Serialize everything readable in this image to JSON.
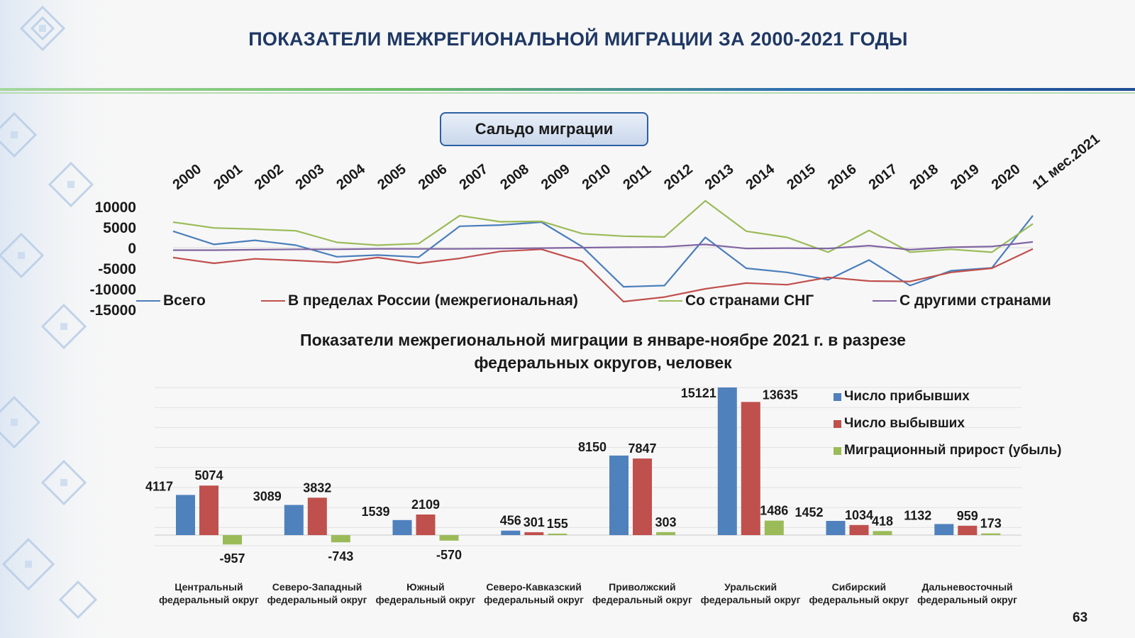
{
  "slide": {
    "title": "ПОКАЗАТЕЛИ МЕЖРЕГИОНАЛЬНОЙ МИГРАЦИИ ЗА 2000-2021 ГОДЫ",
    "page_number": "63",
    "colors": {
      "title": "#1f3864",
      "rule_blue": "#1f4e96",
      "rule_green": "#6fbf6a"
    }
  },
  "chart_data": [
    {
      "type": "line",
      "title": "Сальдо миграции",
      "categories": [
        "2000",
        "2001",
        "2002",
        "2003",
        "2004",
        "2005",
        "2006",
        "2007",
        "2008",
        "2009",
        "2010",
        "2011",
        "2012",
        "2013",
        "2014",
        "2015",
        "2016",
        "2017",
        "2018",
        "2019",
        "2020",
        "11 мес.2021"
      ],
      "y_ticks": [
        "10000",
        "5000",
        "0",
        "-5000",
        "-10000",
        "-15000"
      ],
      "ylim": [
        -15000,
        10000
      ],
      "series": [
        {
          "name": "Всего",
          "color": "#4a7ebb",
          "values": [
            4000,
            800,
            1800,
            600,
            -2200,
            -1800,
            -2300,
            5200,
            5500,
            6200,
            200,
            -9500,
            -9200,
            2500,
            -5000,
            -6000,
            -7800,
            -3000,
            -9200,
            -5600,
            -4900,
            7800
          ]
        },
        {
          "name": "В пределах России (межрегиональная)",
          "color": "#c0504d",
          "values": [
            -2400,
            -3800,
            -2700,
            -3100,
            -3600,
            -2400,
            -3800,
            -2600,
            -900,
            -400,
            -3400,
            -13100,
            -12000,
            -10000,
            -8600,
            -9000,
            -7200,
            -8100,
            -8200,
            -6000,
            -5000,
            -300
          ]
        },
        {
          "name": "Со странами СНГ",
          "color": "#9bbb59",
          "values": [
            6200,
            4800,
            4500,
            4100,
            1300,
            600,
            1000,
            7800,
            6300,
            6400,
            3400,
            2800,
            2600,
            11400,
            4000,
            2500,
            -1100,
            4200,
            -1100,
            -400,
            -1100,
            5800
          ]
        },
        {
          "name": "С другими странами",
          "color": "#8064a2",
          "values": [
            -600,
            -600,
            -500,
            -400,
            -400,
            -300,
            -300,
            -300,
            -200,
            -100,
            0,
            100,
            200,
            800,
            -200,
            -100,
            -200,
            500,
            -500,
            100,
            300,
            1400
          ]
        }
      ]
    },
    {
      "type": "bar",
      "title": "Показатели межрегиональной миграции в январе-ноябре 2021 г. в разрезе федеральных округов, человек",
      "categories": [
        [
          "Центральный",
          "федеральный округ"
        ],
        [
          "Северо-Западный",
          "федеральный округ"
        ],
        [
          "Южный",
          "федеральный округ"
        ],
        [
          "Северо-Кавказский",
          "федеральный округ"
        ],
        [
          "Приволжский",
          "федеральный округ"
        ],
        [
          "Уральский",
          "федеральный округ"
        ],
        [
          "Сибирский",
          "федеральный округ"
        ],
        [
          "Дальневосточный",
          "федеральный округ"
        ]
      ],
      "ylim": [
        -2000,
        15500
      ],
      "series": [
        {
          "name": "Число прибывших",
          "color": "#4f81bd",
          "values": [
            4117,
            3089,
            1539,
            456,
            8150,
            15121,
            1452,
            1132
          ],
          "labels": [
            "4117",
            "3089",
            "1539",
            "456",
            "8150",
            "15121",
            "1452",
            "1132"
          ]
        },
        {
          "name": "Число выбывших",
          "color": "#c0504d",
          "values": [
            5074,
            3832,
            2109,
            301,
            7847,
            13635,
            1034,
            959
          ],
          "labels": [
            "5074",
            "3832",
            "2109",
            "301",
            "7847",
            "13635",
            "1034",
            "959"
          ]
        },
        {
          "name": "Миграционный прирост (убыль)",
          "color": "#9bbb59",
          "values": [
            -957,
            -743,
            -570,
            155,
            303,
            1486,
            418,
            173
          ],
          "labels": [
            "-957",
            "-743",
            "-570",
            "155",
            "303",
            "1486",
            "418",
            "173"
          ]
        }
      ]
    }
  ]
}
